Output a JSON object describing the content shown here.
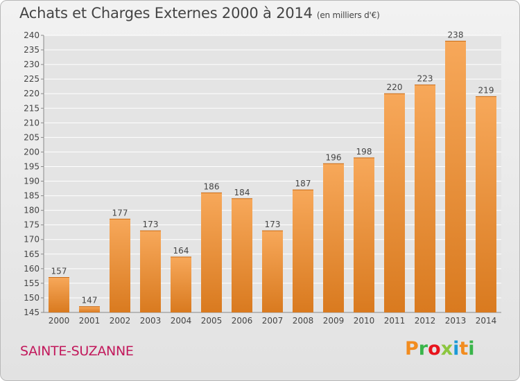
{
  "header": {
    "title": "Achats et Charges Externes 2000 à 2014",
    "unit": "(en milliers d'€)"
  },
  "footer": {
    "commune": "SAINTE-SUZANNE",
    "logo_text": "Proxiti",
    "logo_colors": [
      "#f28c1f",
      "#39b54a",
      "#e8141c",
      "#8cc63f",
      "#1c9ad6",
      "#f28c1f",
      "#39b54a"
    ]
  },
  "colors": {
    "bar_light": "#f7a85a",
    "bar_dark": "#d97a1f",
    "grid": "#ffffff",
    "axis_text": "#444444",
    "commune": "#c2185b"
  },
  "chart_data": {
    "type": "bar",
    "title": "Achats et Charges Externes 2000 à 2014",
    "subtitle": "(en milliers d'€)",
    "categories": [
      "2000",
      "2001",
      "2002",
      "2003",
      "2004",
      "2005",
      "2006",
      "2007",
      "2008",
      "2009",
      "2010",
      "2011",
      "2012",
      "2013",
      "2014"
    ],
    "values": [
      157,
      147,
      177,
      173,
      164,
      186,
      184,
      173,
      187,
      196,
      198,
      220,
      223,
      238,
      219
    ],
    "ylim": [
      145,
      240
    ],
    "yticks": [
      145,
      150,
      155,
      160,
      165,
      170,
      175,
      180,
      185,
      190,
      195,
      200,
      205,
      210,
      215,
      220,
      225,
      230,
      235,
      240
    ],
    "grid": true
  }
}
